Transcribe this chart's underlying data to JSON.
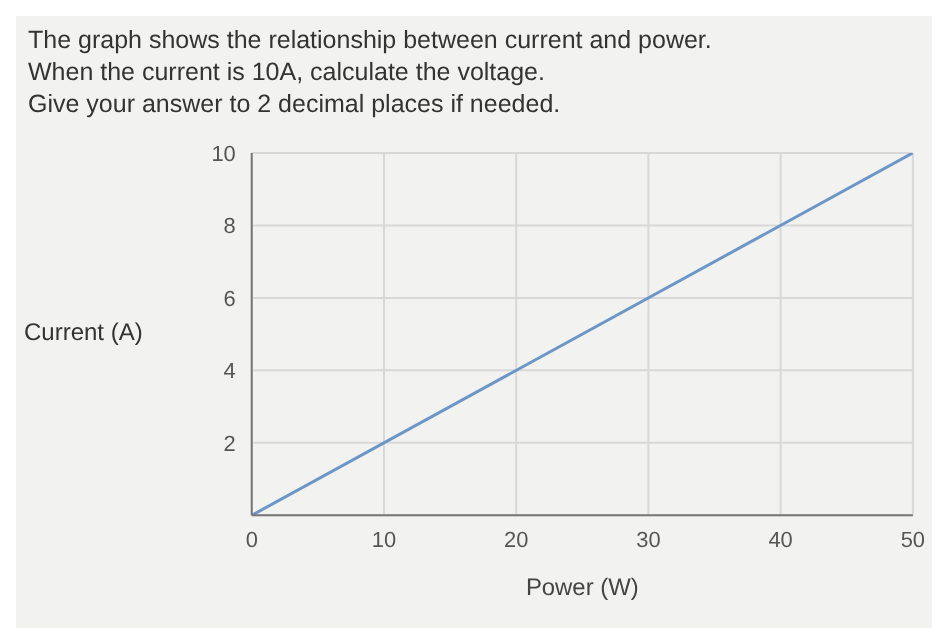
{
  "chart_data": {
    "type": "line",
    "title": "The graph shows the relationship between current and power.",
    "subtitle": "When the current is 10A, calculate the voltage.\nGive your answer to 2 decimal places if needed.",
    "xlabel": "Power (W)",
    "ylabel": "Current (A)",
    "x": [
      0,
      50
    ],
    "series": [
      {
        "color": "#6b96c8",
        "values": [
          0,
          10
        ]
      }
    ],
    "xlim": [
      0,
      50
    ],
    "ylim": [
      0,
      10
    ],
    "xticks": [
      0,
      10,
      20,
      30,
      40,
      50
    ],
    "yticks": [
      {
        "value": 0,
        "label": null
      },
      2,
      4,
      6,
      8,
      10
    ],
    "grid": true,
    "marker": "none",
    "line_style": "solid",
    "legend": false
  }
}
